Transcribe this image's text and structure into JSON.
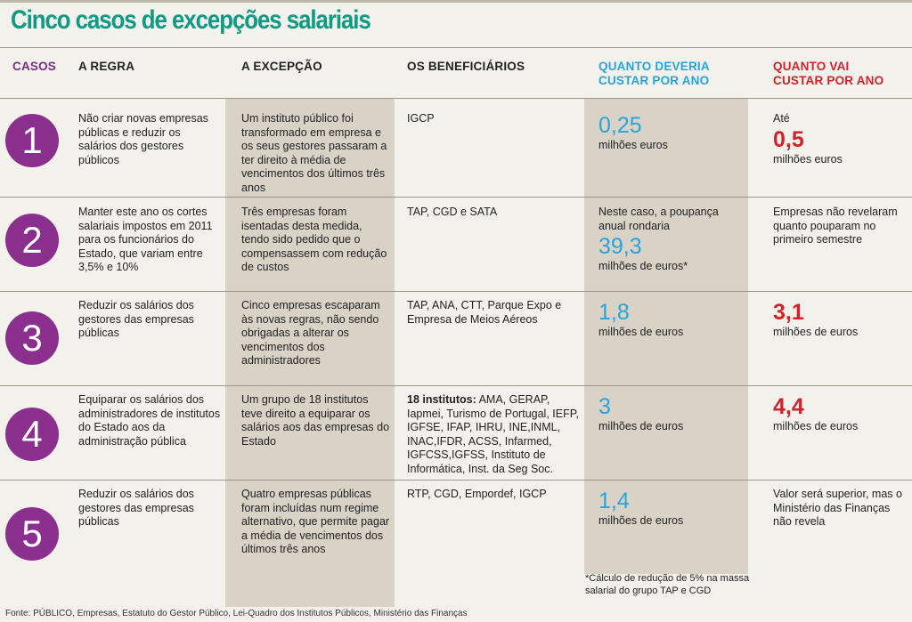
{
  "title": "Cinco casos de excepções salariais",
  "headers": {
    "casos": "CASOS",
    "regra": "A REGRA",
    "excepcao": "A EXCEPÇÃO",
    "beneficiarios": "OS BENEFICIÁRIOS",
    "deveria_1": "QUANTO DEVERIA",
    "deveria_2": "CUSTAR POR ANO",
    "vai_1": "QUANTO VAI",
    "vai_2": "CUSTAR POR ANO"
  },
  "rows": [
    {
      "num": "1",
      "regra": "Não criar novas empresas públicas e reduzir os salários dos gestores públicos",
      "excepcao": "Um instituto público foi transformado em empresa e os seus gestores passaram a ter direito à média de vencimentos dos últimos três anos",
      "beneficiarios_bold": "",
      "beneficiarios": "IGCP",
      "deveria_pre": "",
      "deveria_value": "0,25",
      "deveria_unit": "milhões euros",
      "vai_pre": "Até",
      "vai_value": "0,5",
      "vai_unit": "milhões euros",
      "vai_text": ""
    },
    {
      "num": "2",
      "regra": "Manter este ano os cortes salariais impostos em 2011 para os funcionários do Estado, que variam entre 3,5% e 10%",
      "excepcao": "Três empresas foram isentadas desta medida, tendo sido pedido que o compensassem com redução de custos",
      "beneficiarios_bold": "",
      "beneficiarios": "TAP, CGD e SATA",
      "deveria_pre": "Neste caso, a poupança anual rondaria",
      "deveria_value": "39,3",
      "deveria_unit": "milhões de euros*",
      "vai_pre": "",
      "vai_value": "",
      "vai_unit": "",
      "vai_text": "Empresas não revelaram quanto pouparam no primeiro semestre"
    },
    {
      "num": "3",
      "regra": "Reduzir os salários dos gestores das empresas públicas",
      "excepcao": "Cinco empresas escaparam às novas regras, não sendo obrigadas a alterar os vencimentos dos administradores",
      "beneficiarios_bold": "",
      "beneficiarios": "TAP, ANA, CTT, Parque Expo e Empresa de Meios Aéreos",
      "deveria_pre": "",
      "deveria_value": "1,8",
      "deveria_unit": "milhões de euros",
      "vai_pre": "",
      "vai_value": "3,1",
      "vai_unit": "milhões de euros",
      "vai_text": ""
    },
    {
      "num": "4",
      "regra": "Equiparar os salários dos administradores de institutos do Estado aos da administração pública",
      "excepcao": "Um grupo de 18 institutos teve direito a equiparar os salários aos das empresas do Estado",
      "beneficiarios_bold": "18 institutos:",
      "beneficiarios": " AMA, GERAP, Iapmei, Turismo de Portugal, IEFP, IGFSE, IFAP, IHRU, INE,INML, INAC,IFDR, ACSS, Infarmed, IGFCSS,IGFSS, Instituto de Informática, Inst. da Seg Soc.",
      "deveria_pre": "",
      "deveria_value": "3",
      "deveria_unit": "milhões de euros",
      "vai_pre": "",
      "vai_value": "4,4",
      "vai_unit": "milhões de euros",
      "vai_text": ""
    },
    {
      "num": "5",
      "regra": "Reduzir os salários dos gestores das empresas públicas",
      "excepcao": "Quatro empresas públicas foram incluídas num regime alternativo, que permite pagar a média de vencimentos dos últimos três anos",
      "beneficiarios_bold": "",
      "beneficiarios": "RTP, CGD, Empordef, IGCP",
      "deveria_pre": "",
      "deveria_value": "1,4",
      "deveria_unit": "milhões de euros",
      "vai_pre": "",
      "vai_value": "",
      "vai_unit": "",
      "vai_text": "Valor será superior, mas o Ministério das Finanças não revela"
    }
  ],
  "footnote": "*Cálculo de redução de 5% na massa salarial do grupo TAP e CGD",
  "source": "Fonte: PÚBLICO, Empresas, Estatuto do Gestor Público, Lei-Quadro dos Institutos Públicos, Ministério das Finanças",
  "colors": {
    "title": "#0f9a84",
    "purple": "#8a2f8e",
    "blue": "#2aa3d8",
    "red": "#d2232a",
    "shade": "#d8d2c7"
  }
}
